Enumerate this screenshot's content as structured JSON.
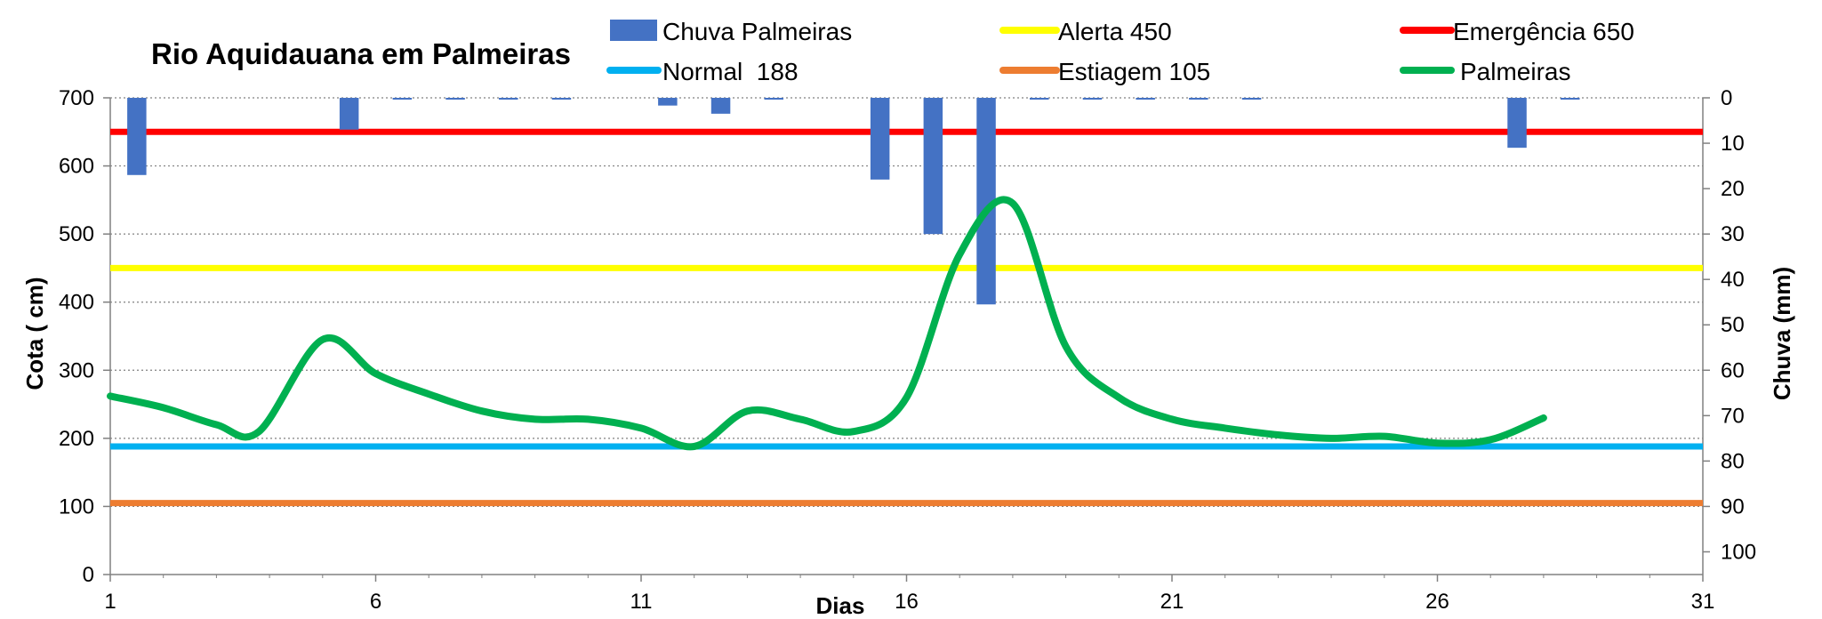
{
  "chart_data": {
    "type": "line",
    "title": "Rio Aquidauana em Palmeiras",
    "xlabel": "Dias",
    "ylabel": "Cota    ( cm)",
    "y2label": "Chuva (mm)",
    "xlim": [
      1,
      31
    ],
    "ylim": [
      0,
      700
    ],
    "y2lim": [
      0,
      105
    ],
    "y2_inverted": true,
    "x_ticks": [
      1,
      6,
      11,
      16,
      21,
      26,
      31
    ],
    "y_ticks": [
      0,
      100,
      200,
      300,
      400,
      500,
      600,
      700
    ],
    "y2_ticks": [
      0,
      10,
      20,
      30,
      40,
      50,
      60,
      70,
      80,
      90,
      100
    ],
    "grid": "horizontal dotted",
    "legend_position": "top",
    "thresholds": [
      {
        "name": "Alerta 450",
        "value": 450,
        "color": "#ffff00"
      },
      {
        "name": "Emergência 650",
        "value": 650,
        "color": "#ff0000"
      },
      {
        "name": "Normal  188",
        "value": 188,
        "color": "#00b0f0"
      },
      {
        "name": "Estiagem 105",
        "value": 105,
        "color": "#ed7d31"
      }
    ],
    "series": [
      {
        "name": "Chuva  Palmeiras",
        "type": "bar",
        "axis": "y2",
        "color": "#4472c4",
        "x": [
          1.5,
          5.5,
          6.5,
          7.5,
          8.5,
          9.5,
          11.5,
          12.5,
          13.5,
          15.5,
          16.5,
          17.5,
          18.5,
          19.5,
          20.5,
          21.5,
          22.5,
          27.5,
          28.5
        ],
        "values": [
          17,
          7,
          0.3,
          0.3,
          0.3,
          0.3,
          1.7,
          3.5,
          0.3,
          18,
          30,
          45.5,
          0.3,
          0.3,
          0.3,
          0.3,
          0.3,
          11,
          0.3
        ]
      },
      {
        "name": "Palmeiras",
        "type": "line",
        "axis": "y",
        "color": "#00b050",
        "x": [
          1,
          2,
          3,
          3.8,
          5,
          6,
          7,
          8,
          9,
          10,
          11,
          12,
          13,
          14,
          15,
          16,
          17,
          18,
          19,
          20,
          21,
          22,
          23,
          24,
          25,
          26,
          27,
          28
        ],
        "values": [
          262,
          245,
          220,
          210,
          345,
          295,
          265,
          240,
          228,
          228,
          215,
          188,
          240,
          228,
          210,
          260,
          470,
          545,
          335,
          260,
          228,
          215,
          205,
          200,
          203,
          193,
          198,
          230
        ]
      }
    ]
  }
}
